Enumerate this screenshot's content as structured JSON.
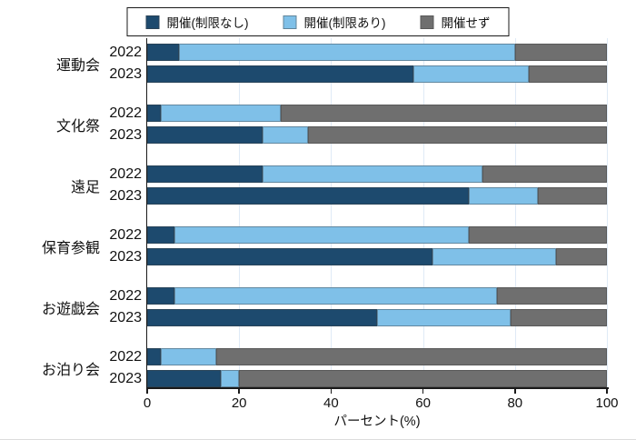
{
  "chart_data": {
    "type": "bar",
    "orientation": "horizontal",
    "stacked": true,
    "units": "percent",
    "xlabel": "パーセント(%)",
    "xlim": [
      0,
      100
    ],
    "xticks": [
      0,
      20,
      40,
      60,
      80,
      100
    ],
    "grid": true,
    "legend_position": "top-center",
    "legend": [
      {
        "label": "開催(制限なし)",
        "color": "#1d4a6e"
      },
      {
        "label": "開催(制限あり)",
        "color": "#7fc0e8"
      },
      {
        "label": "開催せず",
        "color": "#6f6f6f"
      }
    ],
    "groups": [
      {
        "category": "運動会",
        "rows": [
          {
            "year": "2022",
            "values": [
              7,
              73,
              20
            ]
          },
          {
            "year": "2023",
            "values": [
              58,
              25,
              17
            ]
          }
        ]
      },
      {
        "category": "文化祭",
        "rows": [
          {
            "year": "2022",
            "values": [
              3,
              26,
              71
            ]
          },
          {
            "year": "2023",
            "values": [
              25,
              10,
              65
            ]
          }
        ]
      },
      {
        "category": "遠足",
        "rows": [
          {
            "year": "2022",
            "values": [
              25,
              48,
              27
            ]
          },
          {
            "year": "2023",
            "values": [
              70,
              15,
              15
            ]
          }
        ]
      },
      {
        "category": "保育参観",
        "rows": [
          {
            "year": "2022",
            "values": [
              6,
              64,
              30
            ]
          },
          {
            "year": "2023",
            "values": [
              62,
              27,
              11
            ]
          }
        ]
      },
      {
        "category": "お遊戯会",
        "rows": [
          {
            "year": "2022",
            "values": [
              6,
              70,
              24
            ]
          },
          {
            "year": "2023",
            "values": [
              50,
              29,
              21
            ]
          }
        ]
      },
      {
        "category": "お泊り会",
        "rows": [
          {
            "year": "2022",
            "values": [
              3,
              12,
              85
            ]
          },
          {
            "year": "2023",
            "values": [
              16,
              4,
              80
            ]
          }
        ]
      }
    ]
  }
}
